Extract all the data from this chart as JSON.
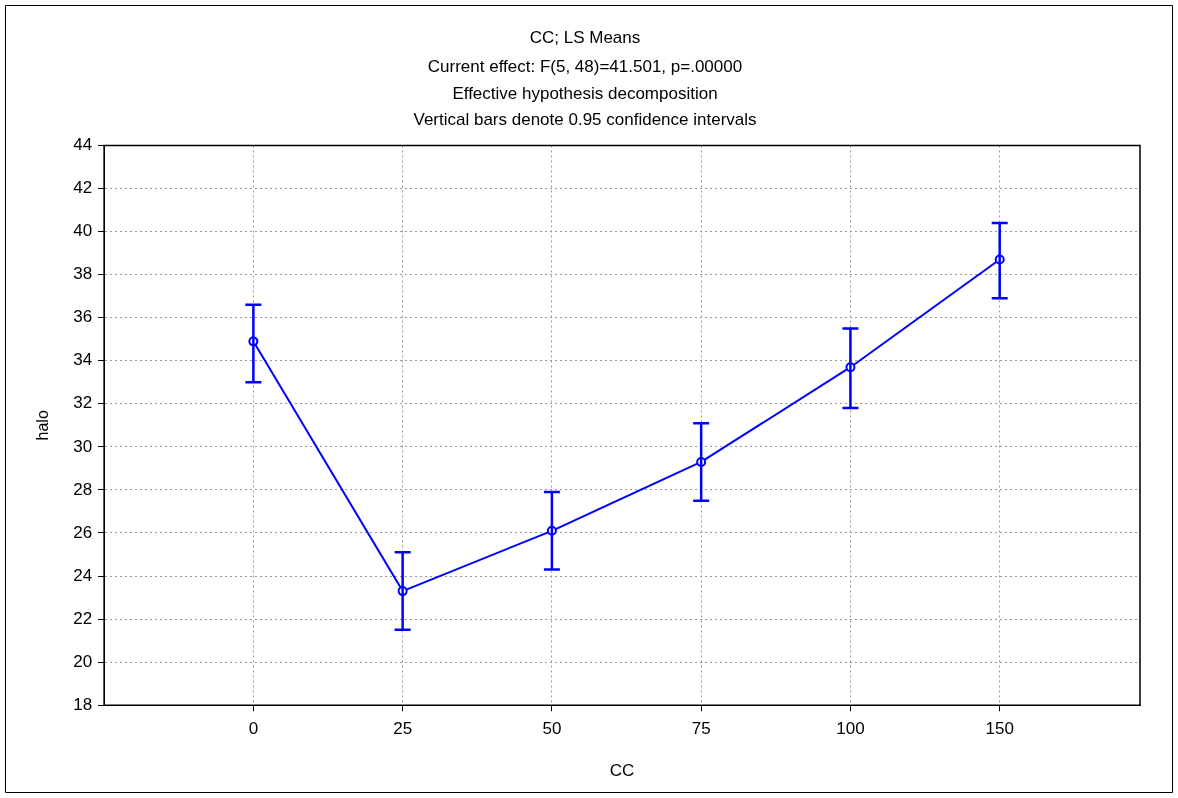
{
  "chart_data": {
    "type": "line",
    "title": "CC; LS Means",
    "subtitle": "Current effect: F(5, 48)=41.501, p=.00000",
    "annotations": [
      "Effective hypothesis decomposition",
      "Vertical bars denote 0.95 confidence intervals"
    ],
    "xlabel": "CC",
    "ylabel": "halo",
    "categories": [
      "0",
      "25",
      "50",
      "75",
      "100",
      "150"
    ],
    "series": [
      {
        "color": "#0000ff",
        "values": [
          34.9,
          23.3,
          26.1,
          29.3,
          33.7,
          38.7
        ],
        "errors": [
          [
            33.0,
            36.6
          ],
          [
            21.5,
            25.1
          ],
          [
            24.3,
            27.9
          ],
          [
            27.5,
            31.1
          ],
          [
            31.8,
            35.5
          ],
          [
            36.9,
            40.4
          ]
        ]
      }
    ],
    "ylim": [
      18,
      44
    ],
    "yticks": [
      18,
      20,
      22,
      24,
      26,
      28,
      30,
      32,
      34,
      36,
      38,
      40,
      42,
      44
    ],
    "grid": true,
    "marker": "circle",
    "line_style": "solid",
    "legend": false
  }
}
